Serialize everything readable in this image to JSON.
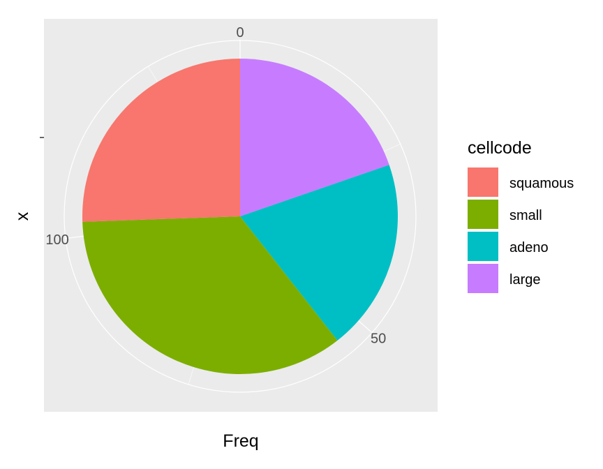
{
  "chart_data": {
    "type": "pie",
    "xlabel": "Freq",
    "ylabel": "x",
    "theta_ticks": [
      "0",
      "50",
      "100"
    ],
    "theta_tick_values": [
      0,
      50,
      100
    ],
    "total": 137,
    "legend": {
      "title": "cellcode",
      "position": "right"
    },
    "series": [
      {
        "name": "squamous",
        "value": 35,
        "color": "#F8766D"
      },
      {
        "name": "small",
        "value": 48,
        "color": "#7CAE00"
      },
      {
        "name": "adeno",
        "value": 27,
        "color": "#00BFC4"
      },
      {
        "name": "large",
        "value": 27,
        "color": "#C77CFF"
      }
    ],
    "panel_background": "#EBEBEB",
    "grid": true,
    "grid_color": "#FFFFFF"
  }
}
